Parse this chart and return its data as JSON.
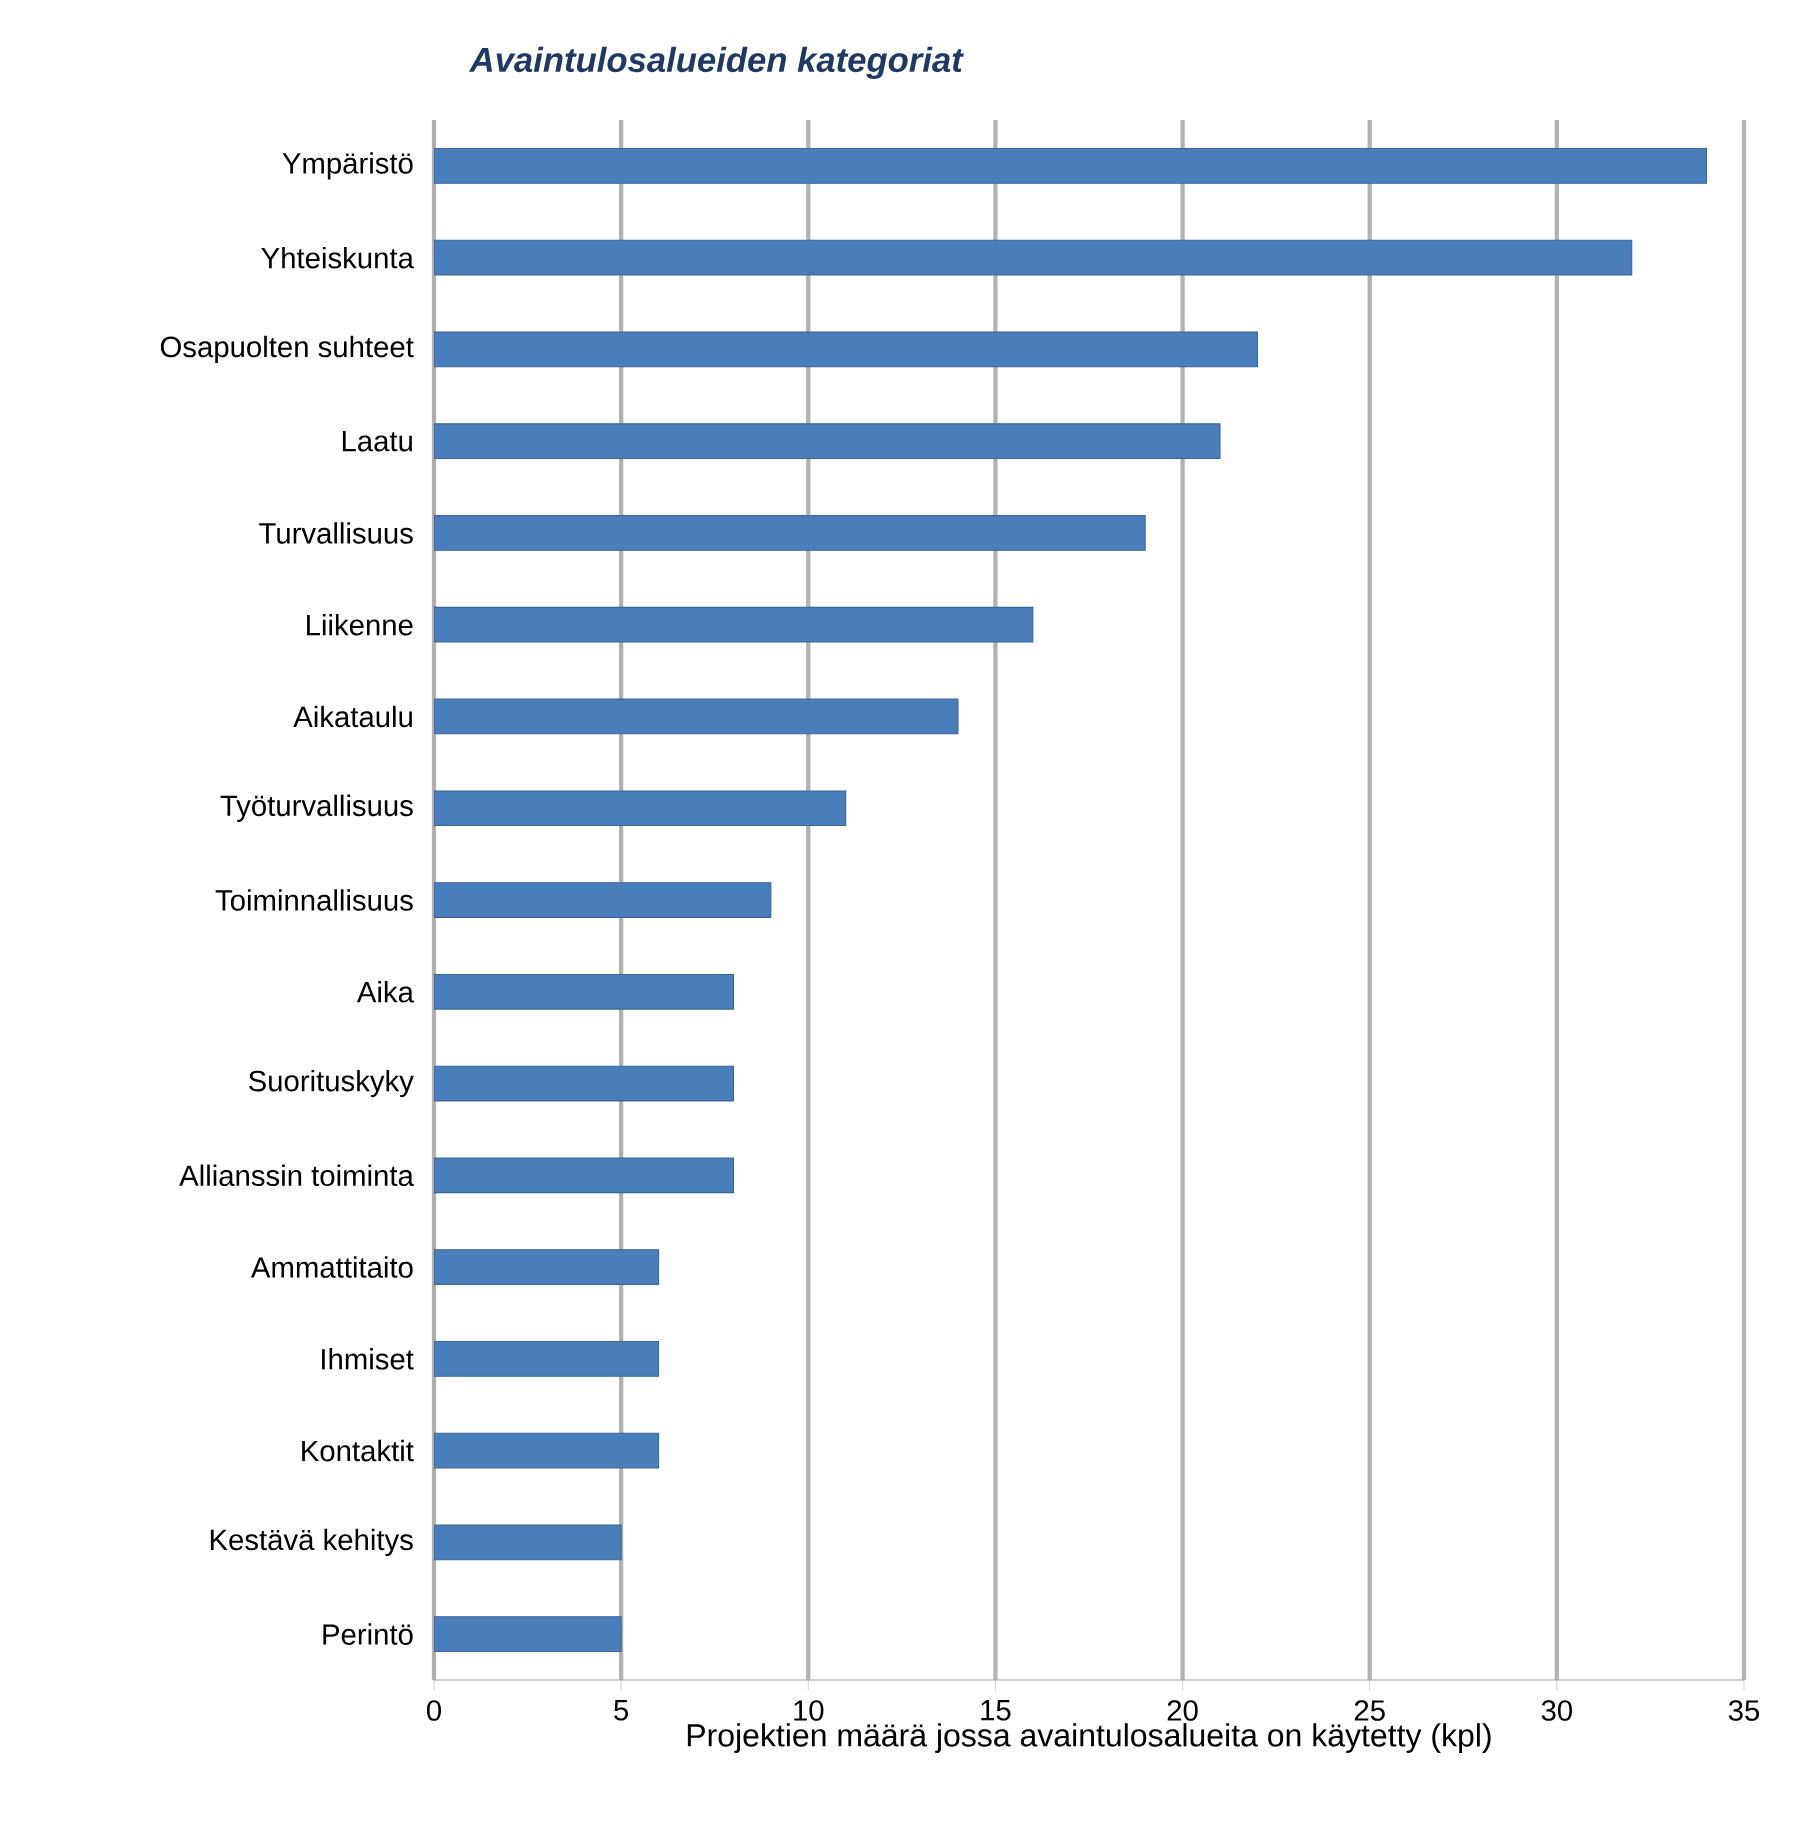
{
  "chart_data": {
    "type": "bar",
    "orientation": "horizontal",
    "title": "Avaintulosalueiden kategoriat",
    "xlabel": "Projektien määrä jossa avaintulosalueita on käytetty (kpl)",
    "categories": [
      "Ympäristö",
      "Yhteiskunta",
      "Osapuolten suhteet",
      "Laatu",
      "Turvallisuus",
      "Liikenne",
      "Aikataulu",
      "Työturvallisuus",
      "Toiminnallisuus",
      "Aika",
      "Suorituskyky",
      "Allianssin toiminta",
      "Ammattitaito",
      "Ihmiset",
      "Kontaktit",
      "Kestävä kehitys",
      "Perintö"
    ],
    "values": [
      34,
      32,
      22,
      21,
      19,
      16,
      14,
      11,
      9,
      8,
      8,
      8,
      6,
      6,
      6,
      5,
      5
    ],
    "color": "#4a7ebb",
    "xlim": [
      0,
      35
    ],
    "xticks": [
      0,
      5,
      10,
      15,
      20,
      25,
      30,
      35
    ],
    "grid": "x"
  }
}
